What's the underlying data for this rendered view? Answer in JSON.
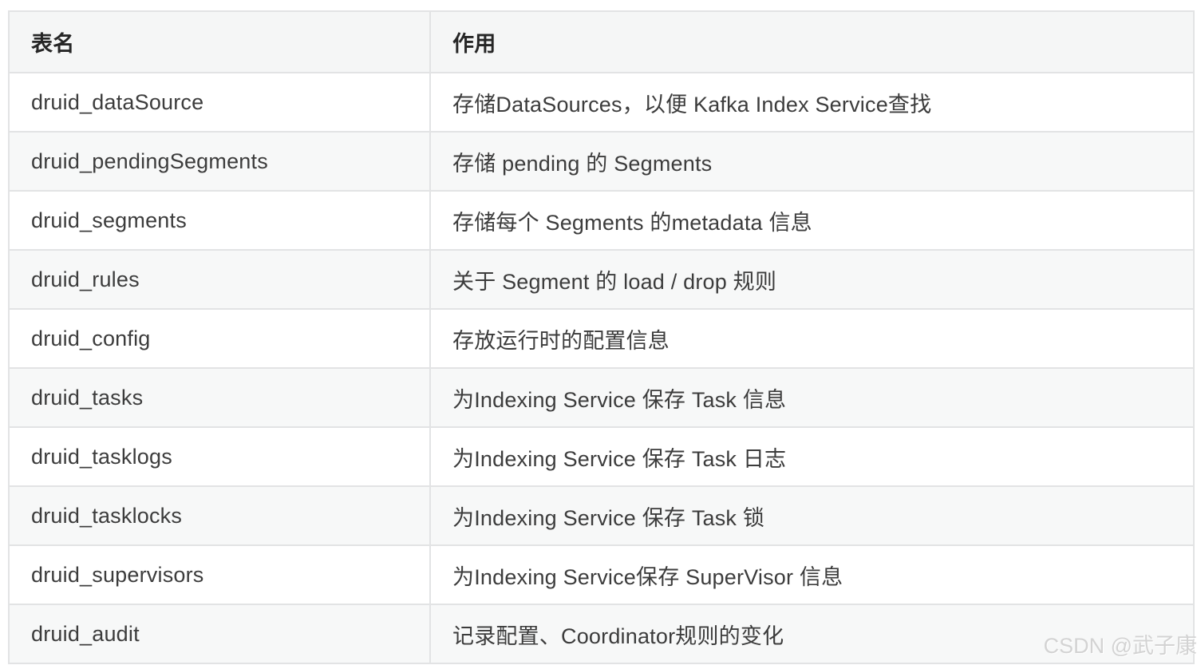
{
  "table": {
    "columns": [
      {
        "label": "表名"
      },
      {
        "label": "作用"
      }
    ],
    "rows": [
      {
        "name": "druid_dataSource",
        "desc": "存储DataSources，以便 Kafka Index Service查找"
      },
      {
        "name": "druid_pendingSegments",
        "desc": "存储 pending 的 Segments"
      },
      {
        "name": "druid_segments",
        "desc": "存储每个 Segments 的metadata 信息"
      },
      {
        "name": "druid_rules",
        "desc": "关于 Segment 的 load / drop 规则"
      },
      {
        "name": "druid_config",
        "desc": "存放运行时的配置信息"
      },
      {
        "name": "druid_tasks",
        "desc": "为Indexing Service 保存 Task 信息"
      },
      {
        "name": "druid_tasklogs",
        "desc": "为Indexing Service 保存 Task 日志"
      },
      {
        "name": "druid_tasklocks",
        "desc": "为Indexing Service 保存 Task 锁"
      },
      {
        "name": "druid_supervisors",
        "desc": "为Indexing Service保存 SuperVisor 信息"
      },
      {
        "name": "druid_audit",
        "desc": "记录配置、Coordinator规则的变化"
      }
    ]
  },
  "watermark": {
    "text": "CSDN @武子康"
  },
  "colors": {
    "border": "#e2e3e4",
    "header_bg": "#f5f6f6",
    "stripe_bg": "#f7f8f8",
    "text": "#3c3c3c",
    "header_text": "#262626",
    "watermark_text": "#d3d3d3"
  }
}
